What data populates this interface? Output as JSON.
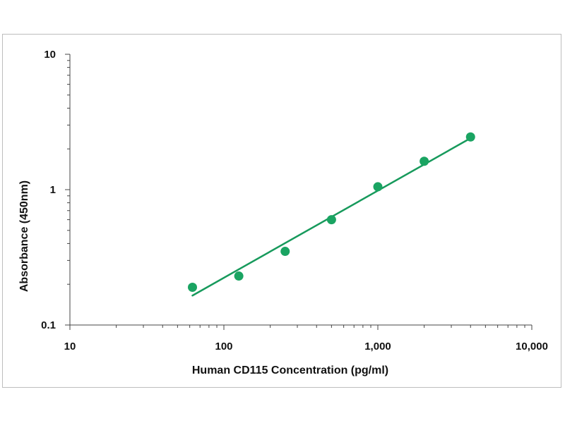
{
  "chart_data": {
    "type": "scatter",
    "title": "",
    "xlabel": "Human CD115 Concentration (pg/ml)",
    "ylabel": "Absorbance (450nm)",
    "x_scale": "log",
    "y_scale": "log",
    "xlim": [
      10,
      10000
    ],
    "ylim": [
      0.1,
      10
    ],
    "x_ticks": [
      {
        "value": 10,
        "label": "10"
      },
      {
        "value": 100,
        "label": "100"
      },
      {
        "value": 1000,
        "label": "1,000"
      },
      {
        "value": 10000,
        "label": "10,000"
      }
    ],
    "y_ticks": [
      {
        "value": 0.1,
        "label": "0.1"
      },
      {
        "value": 1,
        "label": "1"
      },
      {
        "value": 10,
        "label": "10"
      }
    ],
    "grid": false,
    "legend": "none",
    "series": [
      {
        "x": [
          62.5,
          125,
          250,
          500,
          1000,
          2000,
          4000
        ],
        "y": [
          0.19,
          0.23,
          0.35,
          0.6,
          1.05,
          1.62,
          2.45
        ]
      }
    ],
    "fit_line": {
      "x": [
        62.5,
        4000
      ],
      "y": [
        0.165,
        2.4
      ]
    },
    "colors": {
      "points": "#1aa462",
      "fit": "#179a5c",
      "axis": "#444444"
    }
  }
}
